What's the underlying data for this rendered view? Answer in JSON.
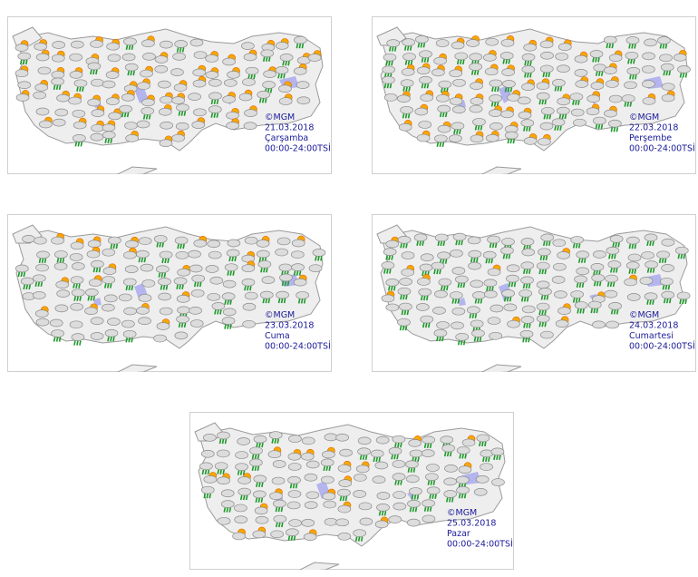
{
  "panels": [
    {
      "copyright": "©MGM",
      "date": "21.03.2018",
      "day": "Çarşamba",
      "time": "00:00-24:00TSİ"
    },
    {
      "copyright": "©MGM",
      "date": "22.03.2018",
      "day": "Perşembe",
      "time": "00:00-24:00TSİ"
    },
    {
      "copyright": "©MGM",
      "date": "23.03.2018",
      "day": "Cuma",
      "time": "00:00-24:00TSİ"
    },
    {
      "copyright": "©MGM",
      "date": "24.03.2018",
      "day": "Cumartesi",
      "time": "00:00-24:00TSİ"
    },
    {
      "copyright": "©MGM",
      "date": "25.03.2018",
      "day": "Pazar",
      "time": "00:00-24:00TSİ"
    }
  ]
}
